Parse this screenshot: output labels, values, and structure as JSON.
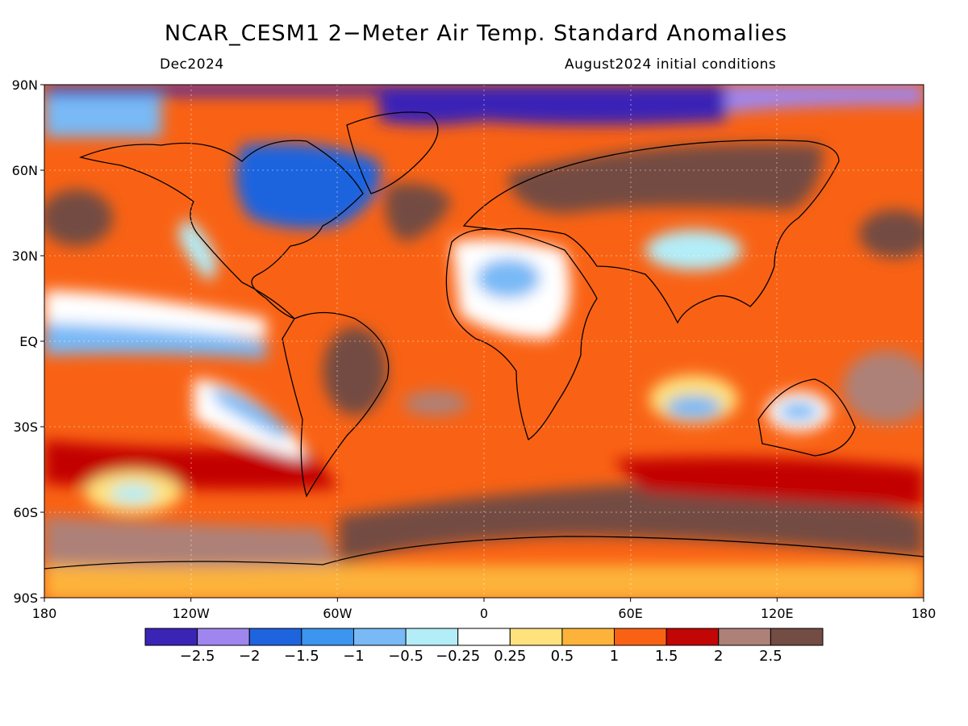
{
  "title": "NCAR_CESM1 2−Meter Air Temp. Standard Anomalies",
  "valid_month": "Dec2024",
  "init_label": "August2024 initial conditions",
  "lat_labels": [
    "90N",
    "60N",
    "30N",
    "EQ",
    "30S",
    "60S",
    "90S"
  ],
  "lon_labels": [
    "180",
    "120W",
    "60W",
    "0",
    "60E",
    "120E",
    "180"
  ],
  "colorbar": {
    "colors": [
      "#3a24b6",
      "#9f86ef",
      "#1e64de",
      "#3c95ef",
      "#78b9f6",
      "#b3edf8",
      "#ffffff",
      "#fee27e",
      "#fdb33a",
      "#f96214",
      "#c20505",
      "#ad8178",
      "#734c43"
    ],
    "labels": [
      "−2.5",
      "−2",
      "−1.5",
      "−1",
      "−0.5",
      "−0.25",
      "0.25",
      "0.5",
      "1",
      "1.5",
      "2",
      "2.5"
    ]
  }
}
